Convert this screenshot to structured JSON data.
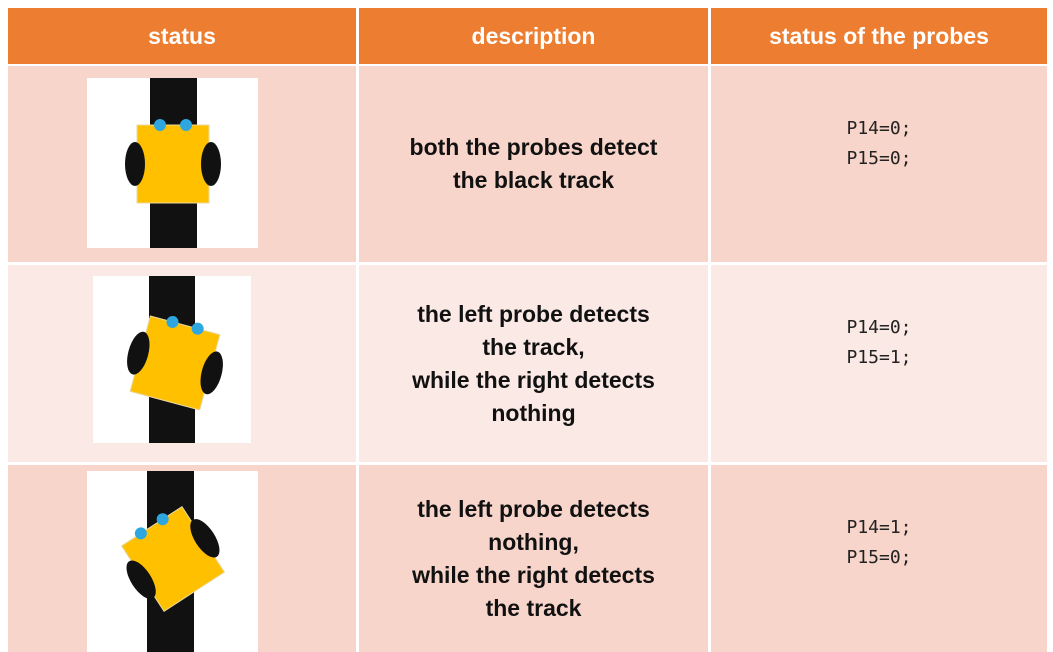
{
  "table": {
    "header": [
      "status",
      "description",
      "status of the probes"
    ],
    "rows": [
      {
        "description": [
          "both the probes detect",
          "the black track"
        ],
        "probes": [
          "P14=0;",
          "P15=0;"
        ]
      },
      {
        "description": [
          "the left probe detects",
          "the track,",
          "while the right detects",
          "nothing"
        ],
        "probes": [
          "P14=0;",
          "P15=1;"
        ]
      },
      {
        "description": [
          "the left probe detects",
          "nothing,",
          "while the right detects",
          "the track"
        ],
        "probes": [
          "P14=1;",
          "P15=0;"
        ]
      }
    ]
  }
}
